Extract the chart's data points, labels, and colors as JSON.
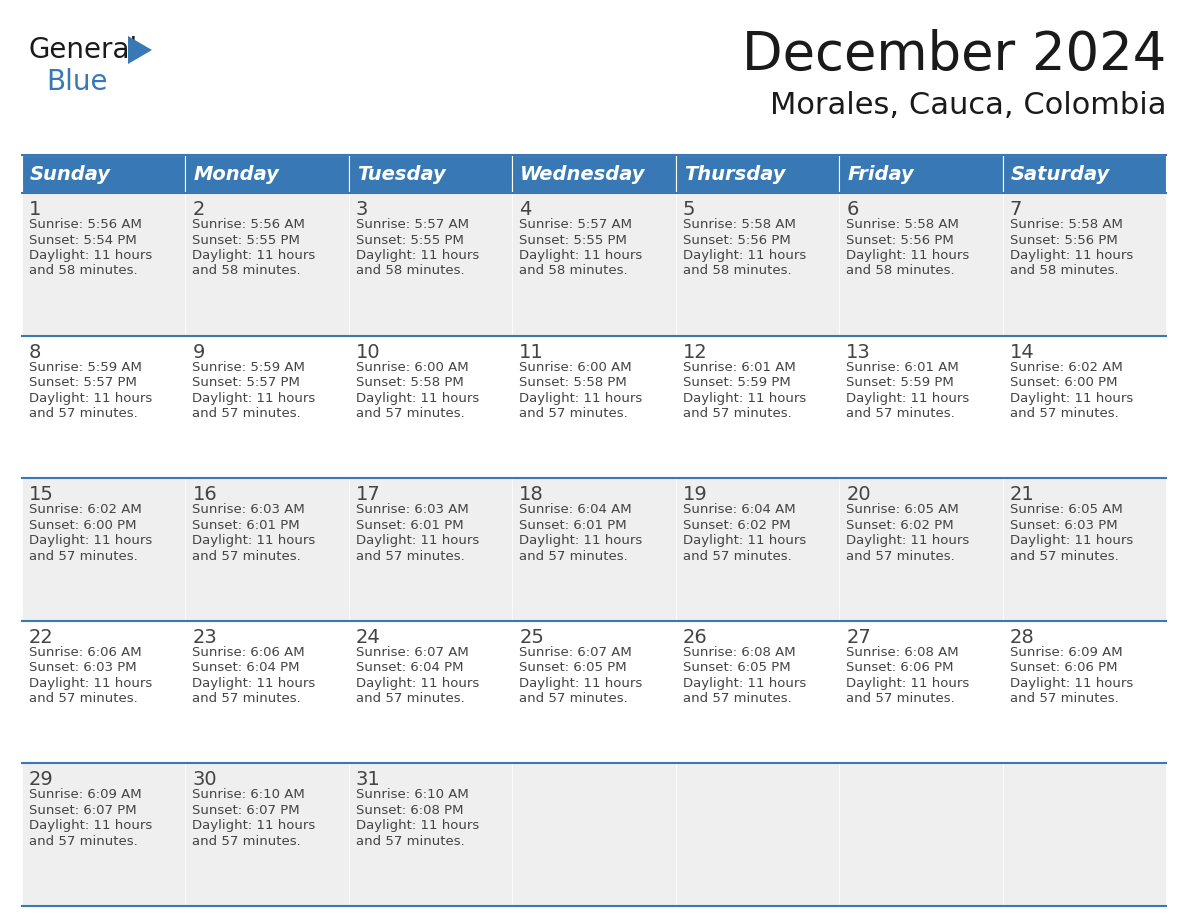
{
  "title": "December 2024",
  "subtitle": "Morales, Cauca, Colombia",
  "header_bg": "#3878b4",
  "header_text_color": "#ffffff",
  "row_bg_even": "#efefef",
  "row_bg_odd": "#ffffff",
  "border_color": "#3878b4",
  "text_color": "#444444",
  "day_names": [
    "Sunday",
    "Monday",
    "Tuesday",
    "Wednesday",
    "Thursday",
    "Friday",
    "Saturday"
  ],
  "days": [
    {
      "day": 1,
      "col": 0,
      "row": 0,
      "sunrise": "5:56 AM",
      "sunset": "5:54 PM",
      "daylight": "11 hours and 58 minutes."
    },
    {
      "day": 2,
      "col": 1,
      "row": 0,
      "sunrise": "5:56 AM",
      "sunset": "5:55 PM",
      "daylight": "11 hours and 58 minutes."
    },
    {
      "day": 3,
      "col": 2,
      "row": 0,
      "sunrise": "5:57 AM",
      "sunset": "5:55 PM",
      "daylight": "11 hours and 58 minutes."
    },
    {
      "day": 4,
      "col": 3,
      "row": 0,
      "sunrise": "5:57 AM",
      "sunset": "5:55 PM",
      "daylight": "11 hours and 58 minutes."
    },
    {
      "day": 5,
      "col": 4,
      "row": 0,
      "sunrise": "5:58 AM",
      "sunset": "5:56 PM",
      "daylight": "11 hours and 58 minutes."
    },
    {
      "day": 6,
      "col": 5,
      "row": 0,
      "sunrise": "5:58 AM",
      "sunset": "5:56 PM",
      "daylight": "11 hours and 58 minutes."
    },
    {
      "day": 7,
      "col": 6,
      "row": 0,
      "sunrise": "5:58 AM",
      "sunset": "5:56 PM",
      "daylight": "11 hours and 58 minutes."
    },
    {
      "day": 8,
      "col": 0,
      "row": 1,
      "sunrise": "5:59 AM",
      "sunset": "5:57 PM",
      "daylight": "11 hours and 57 minutes."
    },
    {
      "day": 9,
      "col": 1,
      "row": 1,
      "sunrise": "5:59 AM",
      "sunset": "5:57 PM",
      "daylight": "11 hours and 57 minutes."
    },
    {
      "day": 10,
      "col": 2,
      "row": 1,
      "sunrise": "6:00 AM",
      "sunset": "5:58 PM",
      "daylight": "11 hours and 57 minutes."
    },
    {
      "day": 11,
      "col": 3,
      "row": 1,
      "sunrise": "6:00 AM",
      "sunset": "5:58 PM",
      "daylight": "11 hours and 57 minutes."
    },
    {
      "day": 12,
      "col": 4,
      "row": 1,
      "sunrise": "6:01 AM",
      "sunset": "5:59 PM",
      "daylight": "11 hours and 57 minutes."
    },
    {
      "day": 13,
      "col": 5,
      "row": 1,
      "sunrise": "6:01 AM",
      "sunset": "5:59 PM",
      "daylight": "11 hours and 57 minutes."
    },
    {
      "day": 14,
      "col": 6,
      "row": 1,
      "sunrise": "6:02 AM",
      "sunset": "6:00 PM",
      "daylight": "11 hours and 57 minutes."
    },
    {
      "day": 15,
      "col": 0,
      "row": 2,
      "sunrise": "6:02 AM",
      "sunset": "6:00 PM",
      "daylight": "11 hours and 57 minutes."
    },
    {
      "day": 16,
      "col": 1,
      "row": 2,
      "sunrise": "6:03 AM",
      "sunset": "6:01 PM",
      "daylight": "11 hours and 57 minutes."
    },
    {
      "day": 17,
      "col": 2,
      "row": 2,
      "sunrise": "6:03 AM",
      "sunset": "6:01 PM",
      "daylight": "11 hours and 57 minutes."
    },
    {
      "day": 18,
      "col": 3,
      "row": 2,
      "sunrise": "6:04 AM",
      "sunset": "6:01 PM",
      "daylight": "11 hours and 57 minutes."
    },
    {
      "day": 19,
      "col": 4,
      "row": 2,
      "sunrise": "6:04 AM",
      "sunset": "6:02 PM",
      "daylight": "11 hours and 57 minutes."
    },
    {
      "day": 20,
      "col": 5,
      "row": 2,
      "sunrise": "6:05 AM",
      "sunset": "6:02 PM",
      "daylight": "11 hours and 57 minutes."
    },
    {
      "day": 21,
      "col": 6,
      "row": 2,
      "sunrise": "6:05 AM",
      "sunset": "6:03 PM",
      "daylight": "11 hours and 57 minutes."
    },
    {
      "day": 22,
      "col": 0,
      "row": 3,
      "sunrise": "6:06 AM",
      "sunset": "6:03 PM",
      "daylight": "11 hours and 57 minutes."
    },
    {
      "day": 23,
      "col": 1,
      "row": 3,
      "sunrise": "6:06 AM",
      "sunset": "6:04 PM",
      "daylight": "11 hours and 57 minutes."
    },
    {
      "day": 24,
      "col": 2,
      "row": 3,
      "sunrise": "6:07 AM",
      "sunset": "6:04 PM",
      "daylight": "11 hours and 57 minutes."
    },
    {
      "day": 25,
      "col": 3,
      "row": 3,
      "sunrise": "6:07 AM",
      "sunset": "6:05 PM",
      "daylight": "11 hours and 57 minutes."
    },
    {
      "day": 26,
      "col": 4,
      "row": 3,
      "sunrise": "6:08 AM",
      "sunset": "6:05 PM",
      "daylight": "11 hours and 57 minutes."
    },
    {
      "day": 27,
      "col": 5,
      "row": 3,
      "sunrise": "6:08 AM",
      "sunset": "6:06 PM",
      "daylight": "11 hours and 57 minutes."
    },
    {
      "day": 28,
      "col": 6,
      "row": 3,
      "sunrise": "6:09 AM",
      "sunset": "6:06 PM",
      "daylight": "11 hours and 57 minutes."
    },
    {
      "day": 29,
      "col": 0,
      "row": 4,
      "sunrise": "6:09 AM",
      "sunset": "6:07 PM",
      "daylight": "11 hours and 57 minutes."
    },
    {
      "day": 30,
      "col": 1,
      "row": 4,
      "sunrise": "6:10 AM",
      "sunset": "6:07 PM",
      "daylight": "11 hours and 57 minutes."
    },
    {
      "day": 31,
      "col": 2,
      "row": 4,
      "sunrise": "6:10 AM",
      "sunset": "6:08 PM",
      "daylight": "11 hours and 57 minutes."
    }
  ],
  "logo_triangle_color": "#3878b4",
  "title_fontsize": 38,
  "subtitle_fontsize": 22,
  "header_fontsize": 14,
  "day_num_fontsize": 14,
  "cell_text_fontsize": 9.5,
  "num_rows": 5,
  "fig_width": 11.88,
  "fig_height": 9.18,
  "dpi": 100
}
